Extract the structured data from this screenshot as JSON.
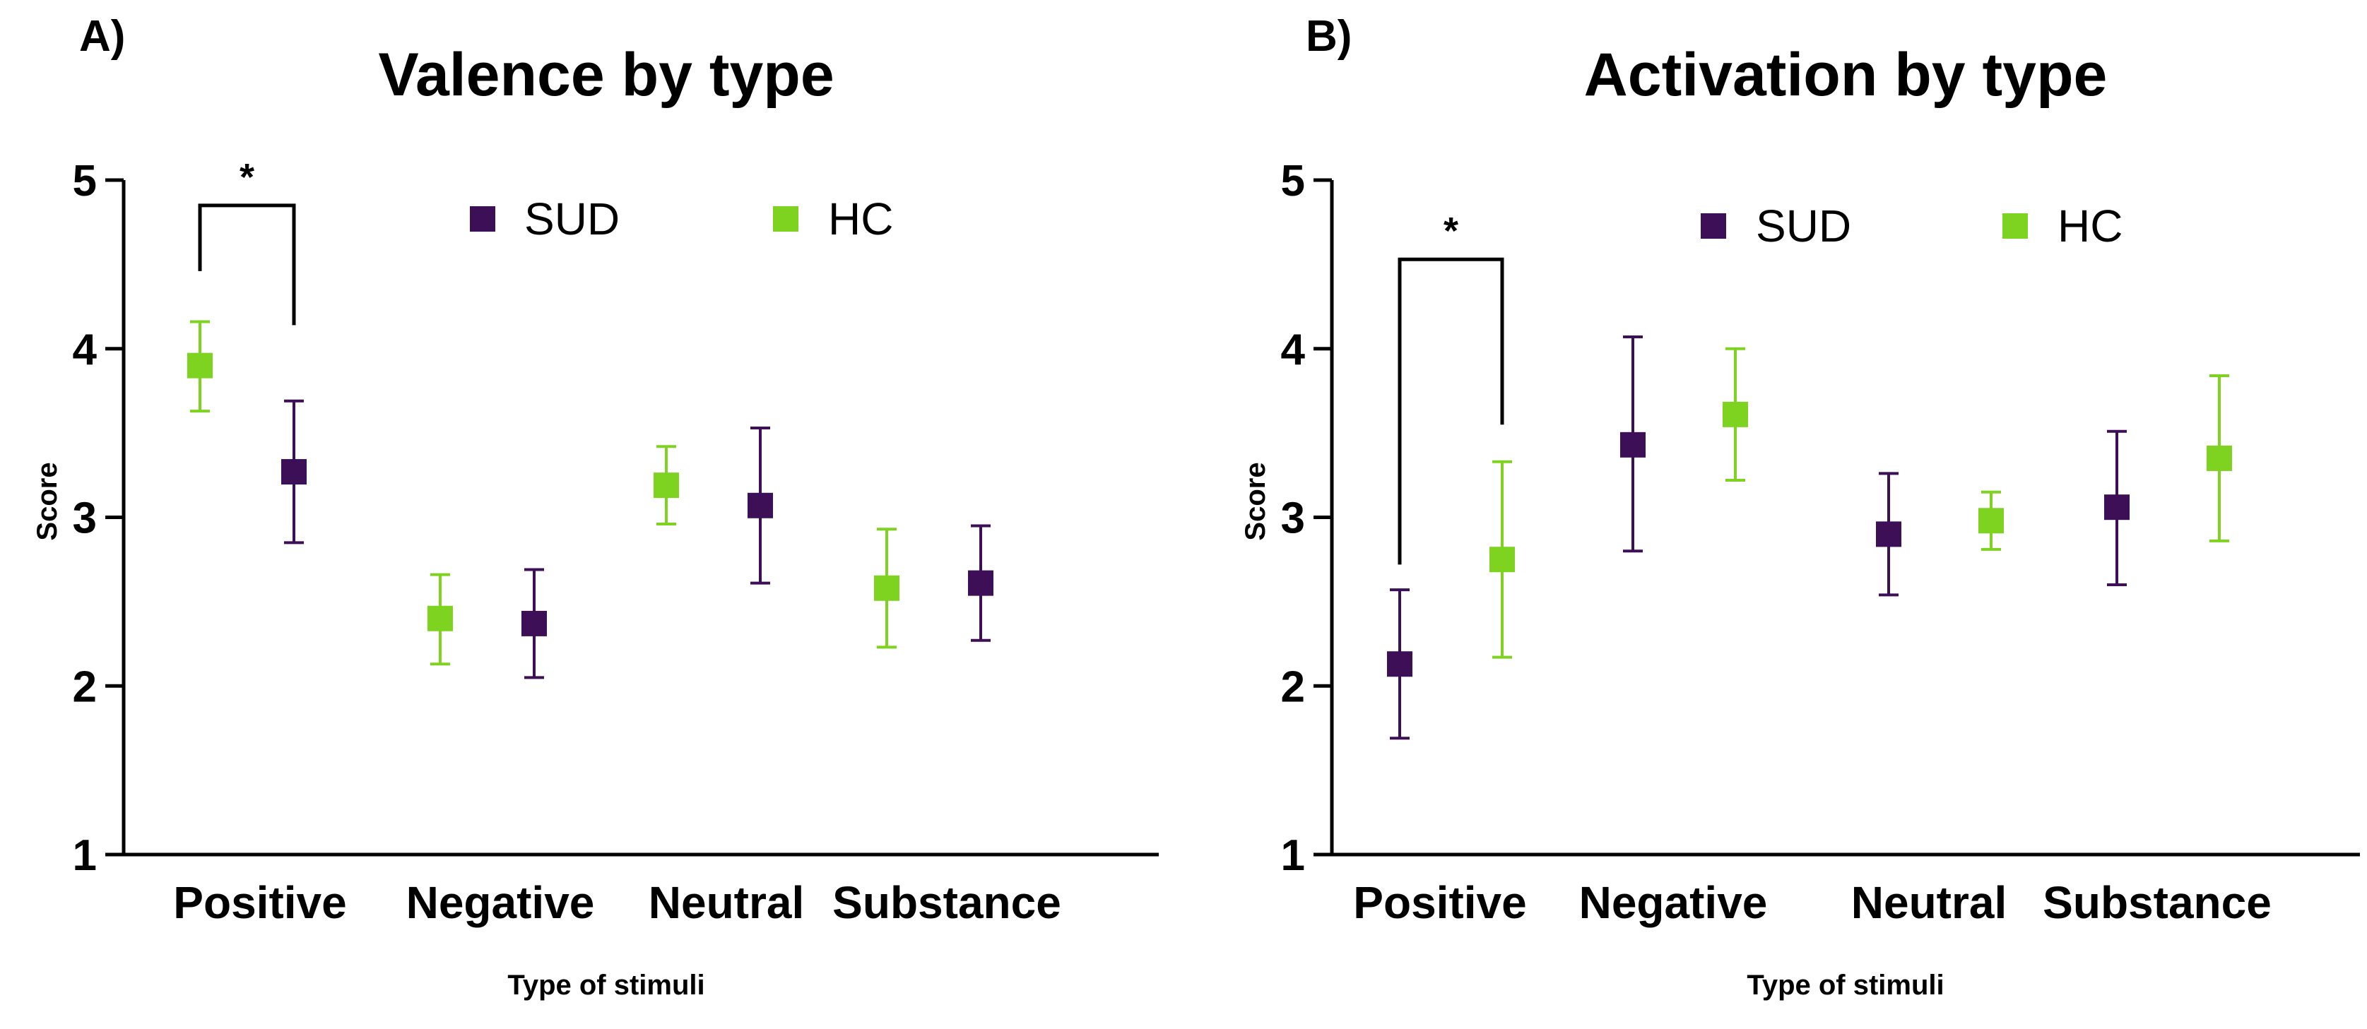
{
  "chart_data": [
    {
      "type": "scatter",
      "panel_label": "A)",
      "title": "Valence by type",
      "xlabel": "Type of stimuli",
      "ylabel": "Score",
      "ylim": [
        1,
        5
      ],
      "yticks": [
        "1",
        "2",
        "3",
        "4",
        "5"
      ],
      "categories": [
        "Positive",
        "Negative",
        "Neutral",
        "Substance"
      ],
      "legend": {
        "placement": "top-center",
        "entries": [
          "SUD",
          "HC"
        ]
      },
      "series": [
        {
          "name": "HC",
          "color": "#7ed321",
          "order": 0,
          "values": [
            3.9,
            2.4,
            3.19,
            2.58
          ],
          "err_low": [
            3.63,
            2.13,
            2.96,
            2.23
          ],
          "err_high": [
            4.16,
            2.66,
            3.42,
            2.93
          ]
        },
        {
          "name": "SUD",
          "color": "#3d0f56",
          "order": 1,
          "values": [
            3.27,
            2.37,
            3.07,
            2.61
          ],
          "err_low": [
            2.85,
            2.05,
            2.61,
            2.27
          ],
          "err_high": [
            3.69,
            2.69,
            3.53,
            2.95
          ]
        }
      ],
      "significance": {
        "category": "Positive",
        "label": "*",
        "left_top": 4.46,
        "right_top": 4.14,
        "bar": 4.85
      }
    },
    {
      "type": "scatter",
      "panel_label": "B)",
      "title": "Activation by type",
      "xlabel": "Type of stimuli",
      "ylabel": "Score",
      "ylim": [
        1,
        5
      ],
      "yticks": [
        "1",
        "2",
        "3",
        "4",
        "5"
      ],
      "categories": [
        "Positive",
        "Negative",
        "Neutral",
        "Substance"
      ],
      "legend": {
        "placement": "top-center",
        "entries": [
          "SUD",
          "HC"
        ]
      },
      "series": [
        {
          "name": "SUD",
          "color": "#3d0f56",
          "order": 0,
          "values": [
            2.13,
            3.43,
            2.9,
            3.06
          ],
          "err_low": [
            1.69,
            2.8,
            2.54,
            2.6
          ],
          "err_high": [
            2.57,
            4.07,
            3.26,
            3.51
          ]
        },
        {
          "name": "HC",
          "color": "#7ed321",
          "order": 1,
          "values": [
            2.75,
            3.61,
            2.98,
            3.35
          ],
          "err_low": [
            2.17,
            3.22,
            2.81,
            2.86
          ],
          "err_high": [
            3.33,
            4.0,
            3.15,
            3.84
          ]
        }
      ],
      "significance": {
        "category": "Positive",
        "label": "*",
        "left_top": 2.72,
        "right_top": 3.55,
        "bar": 4.53
      }
    }
  ]
}
